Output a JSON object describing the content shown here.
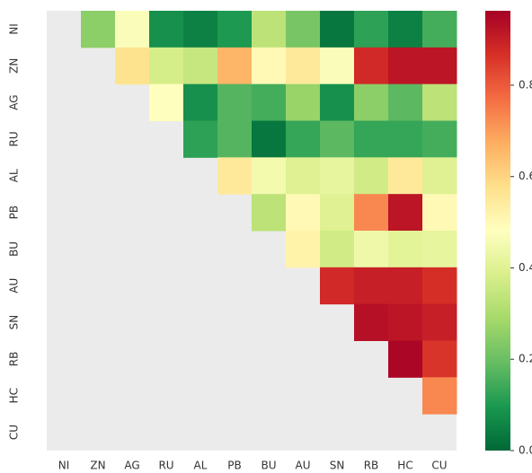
{
  "chart_data": {
    "type": "heatmap",
    "x_categories": [
      "NI",
      "ZN",
      "AG",
      "RU",
      "AL",
      "PB",
      "BU",
      "AU",
      "SN",
      "RB",
      "HC",
      "CU"
    ],
    "y_categories": [
      "NI",
      "ZN",
      "AG",
      "RU",
      "AL",
      "PB",
      "BU",
      "AU",
      "SN",
      "RB",
      "HC",
      "CU"
    ],
    "values": [
      [
        null,
        0.25,
        0.47,
        0.08,
        0.05,
        0.1,
        0.33,
        0.22,
        0.03,
        0.12,
        0.05,
        0.15
      ],
      [
        null,
        null,
        0.57,
        0.38,
        0.35,
        0.66,
        0.5,
        0.55,
        0.47,
        0.88,
        0.92,
        0.92
      ],
      [
        null,
        null,
        null,
        0.48,
        0.08,
        0.17,
        0.15,
        0.27,
        0.08,
        0.25,
        0.18,
        0.33
      ],
      [
        null,
        null,
        null,
        null,
        0.12,
        0.17,
        0.03,
        0.13,
        0.18,
        0.13,
        0.13,
        0.15
      ],
      [
        null,
        null,
        null,
        null,
        null,
        0.55,
        0.45,
        0.4,
        0.42,
        0.37,
        0.55,
        0.4
      ],
      [
        null,
        null,
        null,
        null,
        null,
        null,
        0.33,
        0.5,
        0.4,
        0.73,
        0.92,
        0.5
      ],
      [
        null,
        null,
        null,
        null,
        null,
        null,
        null,
        0.52,
        0.37,
        0.44,
        0.41,
        0.42
      ],
      [
        null,
        null,
        null,
        null,
        null,
        null,
        null,
        null,
        0.88,
        0.9,
        0.9,
        0.87
      ],
      [
        null,
        null,
        null,
        null,
        null,
        null,
        null,
        null,
        null,
        0.93,
        0.92,
        0.9
      ],
      [
        null,
        null,
        null,
        null,
        null,
        null,
        null,
        null,
        null,
        null,
        0.95,
        0.86
      ],
      [
        null,
        null,
        null,
        null,
        null,
        null,
        null,
        null,
        null,
        null,
        null,
        0.73
      ],
      [
        null,
        null,
        null,
        null,
        null,
        null,
        null,
        null,
        null,
        null,
        null,
        null
      ]
    ],
    "zlim": [
      0,
      0.963
    ],
    "zticks": [
      {
        "value": 0,
        "label": "0.0"
      },
      0.2,
      0.4,
      0.6,
      0.8
    ],
    "colormap": [
      "#006837",
      "#1a9850",
      "#66bd63",
      "#a6d96a",
      "#d9ef8b",
      "#ffffbf",
      "#fee08b",
      "#fdae61",
      "#f46d43",
      "#d73027",
      "#a50026"
    ],
    "mask_color": "#ebebeb"
  }
}
